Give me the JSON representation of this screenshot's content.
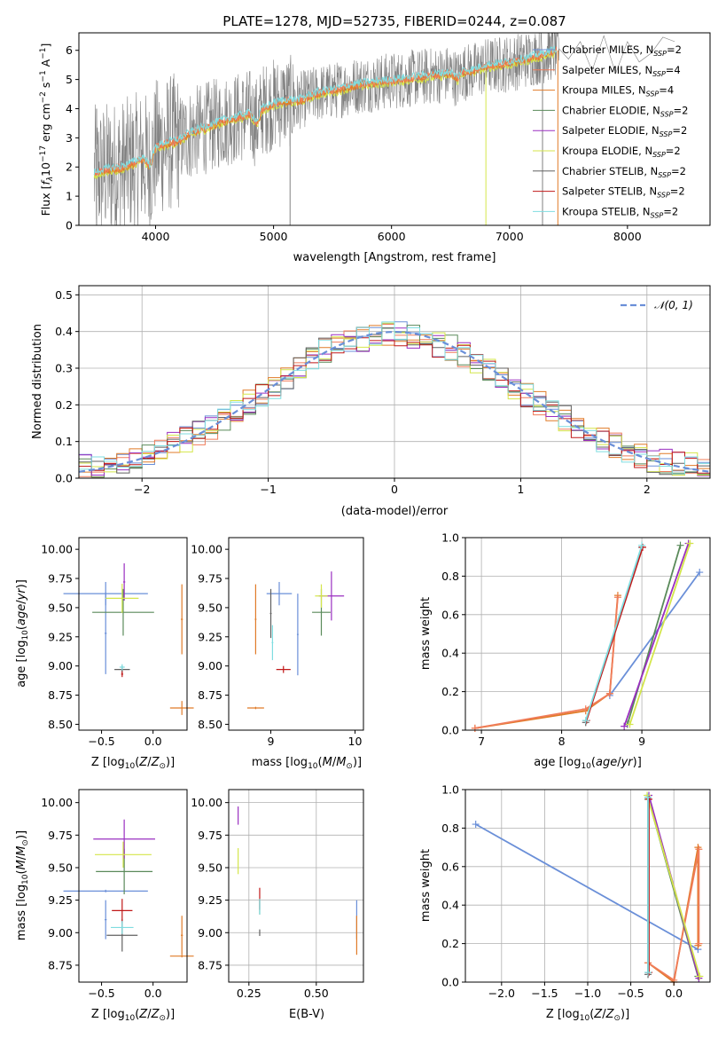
{
  "figure": {
    "title": "PLATE=1278, MJD=52735, FIBERID=0244, z=0.087"
  },
  "colors": {
    "chabrier_miles": "#6a8fd8",
    "salpeter_miles": "#f07c5a",
    "kroupa_miles": "#e07b28",
    "chabrier_elodie": "#5a8a5a",
    "salpeter_elodie": "#9a2fc0",
    "kroupa_elodie": "#d4e64a",
    "chabrier_stelib": "#606060",
    "salpeter_stelib": "#c01818",
    "kroupa_stelib": "#7fdde0",
    "data": "#808080",
    "gaussian": "#6a8fd8"
  },
  "chart_data": [
    {
      "id": "spectrum",
      "type": "line",
      "xlabel": "wavelength [Angstrom, rest frame]",
      "ylabel": "Flux [f_λ 10^-17 erg cm^-2 s^-1 A^-1]",
      "xlim": [
        3350,
        8700
      ],
      "ylim": [
        0,
        6.6
      ],
      "xticks": [
        4000,
        5000,
        6000,
        7000,
        8000
      ],
      "yticks": [
        0,
        1,
        2,
        3,
        4,
        5,
        6
      ],
      "legend_position": "right",
      "legend": [
        {
          "label": "Chabrier MILES, NSSP=2",
          "main": "Chabrier MILES, N",
          "sub": "SSP",
          "tail": "=2",
          "color_key": "chabrier_miles"
        },
        {
          "label": "Salpeter MILES, NSSP=4",
          "main": "Salpeter MILES, N",
          "sub": "SSP",
          "tail": "=4",
          "color_key": "salpeter_miles"
        },
        {
          "label": "Kroupa MILES, NSSP=4",
          "main": "Kroupa MILES, N",
          "sub": "SSP",
          "tail": "=4",
          "color_key": "kroupa_miles"
        },
        {
          "label": "Chabrier ELODIE, NSSP=2",
          "main": "Chabrier ELODIE, N",
          "sub": "SSP",
          "tail": "=2",
          "color_key": "chabrier_elodie"
        },
        {
          "label": "Salpeter ELODIE, NSSP=2",
          "main": "Salpeter ELODIE, N",
          "sub": "SSP",
          "tail": "=2",
          "color_key": "salpeter_elodie"
        },
        {
          "label": "Kroupa ELODIE, NSSP=2",
          "main": "Kroupa ELODIE, N",
          "sub": "SSP",
          "tail": "=2",
          "color_key": "kroupa_elodie"
        },
        {
          "label": "Chabrier STELIB, NSSP=2",
          "main": "Chabrier STELIB, N",
          "sub": "SSP",
          "tail": "=2",
          "color_key": "chabrier_stelib"
        },
        {
          "label": "Salpeter STELIB, NSSP=2",
          "main": "Salpeter STELIB, N",
          "sub": "SSP",
          "tail": "=2",
          "color_key": "salpeter_stelib"
        },
        {
          "label": "Kroupa STELIB, NSSP=2",
          "main": "Kroupa STELIB, N",
          "sub": "SSP",
          "tail": "=2",
          "color_key": "kroupa_stelib"
        }
      ],
      "model_continuum": {
        "x": [
          3480,
          3600,
          3700,
          3800,
          3900,
          3950,
          4000,
          4100,
          4200,
          4300,
          4400,
          4500,
          4600,
          4700,
          4800,
          4861,
          4900,
          5000,
          5100,
          5200,
          5300,
          5400,
          5500,
          5600,
          5700,
          5800,
          5900,
          6000,
          6100,
          6200,
          6300,
          6400,
          6500,
          6563,
          6600,
          6700,
          6800,
          6900,
          7000,
          7100,
          7200,
          7300,
          7400
        ],
        "y": [
          1.75,
          1.9,
          1.95,
          2.1,
          2.3,
          2.0,
          2.65,
          2.8,
          2.9,
          3.15,
          3.3,
          3.45,
          3.6,
          3.7,
          3.8,
          3.5,
          3.95,
          4.15,
          4.25,
          4.25,
          4.4,
          4.55,
          4.6,
          4.7,
          4.8,
          4.85,
          4.9,
          4.95,
          5.0,
          5.05,
          5.1,
          5.15,
          5.2,
          5.0,
          5.25,
          5.3,
          5.45,
          5.5,
          5.55,
          5.65,
          5.75,
          5.85,
          6.0
        ]
      },
      "data_tail": {
        "x": [
          7420,
          7500,
          7600,
          7700,
          7800,
          7900,
          8000,
          8100,
          8200,
          8300,
          8400
        ],
        "y": [
          6.05,
          5.7,
          6.3,
          5.3,
          6.5,
          5.2,
          6.3,
          5.6,
          5.9,
          6.45,
          6.3
        ]
      }
    },
    {
      "id": "residuals",
      "type": "line",
      "xlabel": "(data-model)/error",
      "ylabel": "Normed distribution",
      "xlim": [
        -2.5,
        2.5
      ],
      "ylim": [
        0,
        0.525
      ],
      "xticks": [
        -2,
        -1,
        0,
        1,
        2
      ],
      "yticks": [
        0.0,
        0.1,
        0.2,
        0.3,
        0.4,
        0.5
      ],
      "legend_position": "top-right",
      "legend_label": "𝒩(0, 1)",
      "bin_width": 0.1,
      "histogram_profile": {
        "x": [
          -2.5,
          -2.0,
          -1.5,
          -1.0,
          -0.5,
          0.0,
          0.5,
          1.0,
          1.5,
          2.0,
          2.5
        ],
        "y": [
          0.03,
          0.05,
          0.13,
          0.24,
          0.36,
          0.4,
          0.35,
          0.24,
          0.13,
          0.05,
          0.03
        ]
      }
    },
    {
      "id": "age_vs_z",
      "type": "scatter",
      "xlabel": "Z [log10(Z/Z⊙)]",
      "ylabel": "age  [log10(age/yr)]",
      "xlim": [
        -0.72,
        0.33
      ],
      "ylim": [
        8.45,
        10.1
      ],
      "xticks": [
        -0.5,
        0.0
      ],
      "yticks": [
        8.5,
        8.75,
        9.0,
        9.25,
        9.5,
        9.75,
        10.0
      ],
      "points": [
        {
          "color_key": "chabrier_miles",
          "x": -0.46,
          "y": 9.62,
          "xerr": 0.82,
          "yerr": 0.2
        },
        {
          "color_key": "chabrier_miles",
          "x": -0.46,
          "y": 9.28,
          "xerr": 0.02,
          "yerr": 0.7
        },
        {
          "color_key": "kroupa_miles",
          "x": 0.28,
          "y": 8.64,
          "xerr": 0.23,
          "yerr": 0.12
        },
        {
          "color_key": "kroupa_miles",
          "x": 0.28,
          "y": 9.4,
          "xerr": 0.02,
          "yerr": 0.6
        },
        {
          "color_key": "chabrier_elodie",
          "x": -0.29,
          "y": 9.46,
          "xerr": 0.6,
          "yerr": 0.4
        },
        {
          "color_key": "salpeter_elodie",
          "x": -0.28,
          "y": 9.72,
          "xerr": 0.02,
          "yerr": 0.32
        },
        {
          "color_key": "kroupa_elodie",
          "x": -0.3,
          "y": 9.58,
          "xerr": 0.32,
          "yerr": 0.25
        },
        {
          "color_key": "chabrier_stelib",
          "x": -0.3,
          "y": 8.97,
          "xerr": 0.15,
          "yerr": 0.06
        },
        {
          "color_key": "salpeter_stelib",
          "x": -0.3,
          "y": 8.93,
          "xerr": 0.02,
          "yerr": 0.05
        },
        {
          "color_key": "kroupa_stelib",
          "x": -0.3,
          "y": 8.99,
          "xerr": 0.05,
          "yerr": 0.05
        }
      ]
    },
    {
      "id": "age_vs_mass",
      "type": "scatter",
      "xlabel": "mass [log10(M/M⊙)]",
      "xlim": [
        8.5,
        10.1
      ],
      "ylim": [
        8.45,
        10.1
      ],
      "xticks": [
        9,
        10
      ],
      "yticks": [
        8.5,
        8.75,
        9.0,
        9.25,
        9.5,
        9.75,
        10.0
      ],
      "points": [
        {
          "color_key": "chabrier_miles",
          "x": 9.1,
          "y": 9.62,
          "xerr": 0.3,
          "yerr": 0.2
        },
        {
          "color_key": "chabrier_miles",
          "x": 9.32,
          "y": 9.27,
          "xerr": 0.02,
          "yerr": 0.7
        },
        {
          "color_key": "kroupa_miles",
          "x": 8.82,
          "y": 8.64,
          "xerr": 0.2,
          "yerr": 0.02
        },
        {
          "color_key": "kroupa_miles",
          "x": 8.82,
          "y": 9.4,
          "xerr": 0.02,
          "yerr": 0.6
        },
        {
          "color_key": "chabrier_elodie",
          "x": 9.6,
          "y": 9.46,
          "xerr": 0.22,
          "yerr": 0.4
        },
        {
          "color_key": "salpeter_elodie",
          "x": 9.72,
          "y": 9.6,
          "xerr": 0.3,
          "yerr": 0.42
        },
        {
          "color_key": "kroupa_elodie",
          "x": 9.6,
          "y": 9.6,
          "xerr": 0.15,
          "yerr": 0.2
        },
        {
          "color_key": "chabrier_stelib",
          "x": 9.0,
          "y": 9.45,
          "xerr": 0.02,
          "yerr": 0.42
        },
        {
          "color_key": "salpeter_stelib",
          "x": 9.15,
          "y": 8.97,
          "xerr": 0.17,
          "yerr": 0.06
        },
        {
          "color_key": "kroupa_stelib",
          "x": 9.02,
          "y": 9.2,
          "xerr": 0.02,
          "yerr": 0.3
        }
      ]
    },
    {
      "id": "weight_vs_age",
      "type": "line",
      "xlabel": "age  [log10(age/yr)]",
      "ylabel": "mass weight",
      "xlim": [
        6.8,
        9.85
      ],
      "ylim": [
        0,
        1.0
      ],
      "xticks": [
        7,
        8,
        9
      ],
      "yticks": [
        0.0,
        0.2,
        0.4,
        0.6,
        0.8,
        1.0
      ],
      "series": [
        {
          "color_key": "chabrier_miles",
          "x": [
            8.6,
            9.72
          ],
          "y": [
            0.18,
            0.82
          ]
        },
        {
          "color_key": "kroupa_miles",
          "x": [
            6.92,
            8.3,
            8.6,
            8.7
          ],
          "y": [
            0.01,
            0.1,
            0.19,
            0.7
          ]
        },
        {
          "color_key": "salpeter_miles",
          "x": [
            6.92,
            8.3,
            8.6,
            8.7
          ],
          "y": [
            0.01,
            0.11,
            0.19,
            0.69
          ]
        },
        {
          "color_key": "chabrier_elodie",
          "x": [
            8.82,
            9.48
          ],
          "y": [
            0.03,
            0.96
          ]
        },
        {
          "color_key": "salpeter_elodie",
          "x": [
            8.78,
            9.58
          ],
          "y": [
            0.02,
            0.97
          ]
        },
        {
          "color_key": "kroupa_elodie",
          "x": [
            8.85,
            9.6
          ],
          "y": [
            0.03,
            0.97
          ]
        },
        {
          "color_key": "chabrier_stelib",
          "x": [
            8.3,
            9.0
          ],
          "y": [
            0.04,
            0.95
          ]
        },
        {
          "color_key": "salpeter_stelib",
          "x": [
            8.31,
            9.01
          ],
          "y": [
            0.05,
            0.95
          ]
        },
        {
          "color_key": "kroupa_stelib",
          "x": [
            8.3,
            9.0
          ],
          "y": [
            0.05,
            0.96
          ]
        }
      ]
    },
    {
      "id": "mass_vs_z",
      "type": "scatter",
      "xlabel": "Z [log10(Z/Z⊙)]",
      "ylabel": "mass [log10(M/M⊙)]",
      "xlim": [
        -0.72,
        0.33
      ],
      "ylim": [
        8.62,
        10.1
      ],
      "xticks": [
        -0.5,
        0.0
      ],
      "yticks": [
        8.75,
        9.0,
        9.25,
        9.5,
        9.75,
        10.0
      ],
      "points": [
        {
          "color_key": "chabrier_miles",
          "x": -0.46,
          "y": 9.32,
          "xerr": 0.82,
          "yerr": 0.02
        },
        {
          "color_key": "chabrier_miles",
          "x": -0.46,
          "y": 9.1,
          "xerr": 0.02,
          "yerr": 0.3
        },
        {
          "color_key": "kroupa_miles",
          "x": 0.28,
          "y": 8.82,
          "xerr": 0.23,
          "yerr": 0.02
        },
        {
          "color_key": "kroupa_miles",
          "x": 0.28,
          "y": 8.98,
          "xerr": 0.02,
          "yerr": 0.3
        },
        {
          "color_key": "chabrier_elodie",
          "x": -0.28,
          "y": 9.47,
          "xerr": 0.55,
          "yerr": 0.35
        },
        {
          "color_key": "salpeter_elodie",
          "x": -0.28,
          "y": 9.72,
          "xerr": 0.6,
          "yerr": 0.3
        },
        {
          "color_key": "kroupa_elodie",
          "x": -0.29,
          "y": 9.6,
          "xerr": 0.55,
          "yerr": 0.2
        },
        {
          "color_key": "chabrier_stelib",
          "x": -0.3,
          "y": 8.98,
          "xerr": 0.3,
          "yerr": 0.25
        },
        {
          "color_key": "salpeter_stelib",
          "x": -0.3,
          "y": 9.17,
          "xerr": 0.2,
          "yerr": 0.18
        },
        {
          "color_key": "kroupa_stelib",
          "x": -0.3,
          "y": 9.04,
          "xerr": 0.22,
          "yerr": 0.1
        }
      ]
    },
    {
      "id": "mass_vs_ebv",
      "type": "scatter",
      "xlabel": "E(B-V)",
      "xlim": [
        0.175,
        0.675
      ],
      "ylim": [
        8.62,
        10.1
      ],
      "xticks": [
        0.25,
        0.5
      ],
      "yticks": [
        8.75,
        9.0,
        9.25,
        9.5,
        9.75,
        10.0
      ],
      "points": [
        {
          "color_key": "chabrier_miles",
          "x": 0.65,
          "y": 9.1,
          "xerr": 0.0,
          "yerr": 0.3
        },
        {
          "color_key": "kroupa_miles",
          "x": 0.65,
          "y": 8.98,
          "xerr": 0.0,
          "yerr": 0.3
        },
        {
          "color_key": "chabrier_elodie",
          "x": 0.29,
          "y": 9.2,
          "xerr": 0.0,
          "yerr": 0.12
        },
        {
          "color_key": "salpeter_elodie",
          "x": 0.21,
          "y": 9.9,
          "xerr": 0.0,
          "yerr": 0.14
        },
        {
          "color_key": "kroupa_elodie",
          "x": 0.21,
          "y": 9.55,
          "xerr": 0.0,
          "yerr": 0.2
        },
        {
          "color_key": "chabrier_stelib",
          "x": 0.29,
          "y": 9.0,
          "xerr": 0.0,
          "yerr": 0.05
        },
        {
          "color_key": "salpeter_stelib",
          "x": 0.29,
          "y": 9.26,
          "xerr": 0.0,
          "yerr": 0.17
        },
        {
          "color_key": "kroupa_stelib",
          "x": 0.29,
          "y": 9.2,
          "xerr": 0.0,
          "yerr": 0.12
        }
      ]
    },
    {
      "id": "weight_vs_z",
      "type": "line",
      "xlabel": "Z [log10(Z/Z⊙)]",
      "ylabel": "mass weight",
      "xlim": [
        -2.42,
        0.42
      ],
      "ylim": [
        0,
        1.0
      ],
      "xticks": [
        -2.0,
        -1.5,
        -1.0,
        -0.5,
        0.0
      ],
      "yticks": [
        0.0,
        0.2,
        0.4,
        0.6,
        0.8,
        1.0
      ],
      "series": [
        {
          "color_key": "chabrier_miles",
          "x": [
            -2.3,
            0.28
          ],
          "y": [
            0.82,
            0.17
          ]
        },
        {
          "color_key": "kroupa_miles",
          "x": [
            -0.3,
            0.0,
            0.28,
            0.28
          ],
          "y": [
            0.1,
            0.0,
            0.7,
            0.19
          ]
        },
        {
          "color_key": "salpeter_miles",
          "x": [
            -0.3,
            0.0,
            0.29,
            0.29
          ],
          "y": [
            0.1,
            0.01,
            0.69,
            0.2
          ]
        },
        {
          "color_key": "chabrier_elodie",
          "x": [
            -0.3,
            0.28
          ],
          "y": [
            0.96,
            0.03
          ]
        },
        {
          "color_key": "salpeter_elodie",
          "x": [
            -0.29,
            0.29
          ],
          "y": [
            0.97,
            0.02
          ]
        },
        {
          "color_key": "kroupa_elodie",
          "x": [
            -0.31,
            0.3
          ],
          "y": [
            0.97,
            0.03
          ]
        },
        {
          "color_key": "chabrier_stelib",
          "x": [
            -0.3,
            -0.3
          ],
          "y": [
            0.95,
            0.04
          ]
        },
        {
          "color_key": "salpeter_stelib",
          "x": [
            -0.29,
            -0.29
          ],
          "y": [
            0.95,
            0.05
          ]
        },
        {
          "color_key": "kroupa_stelib",
          "x": [
            -0.3,
            -0.3
          ],
          "y": [
            0.96,
            0.05
          ]
        }
      ]
    }
  ]
}
